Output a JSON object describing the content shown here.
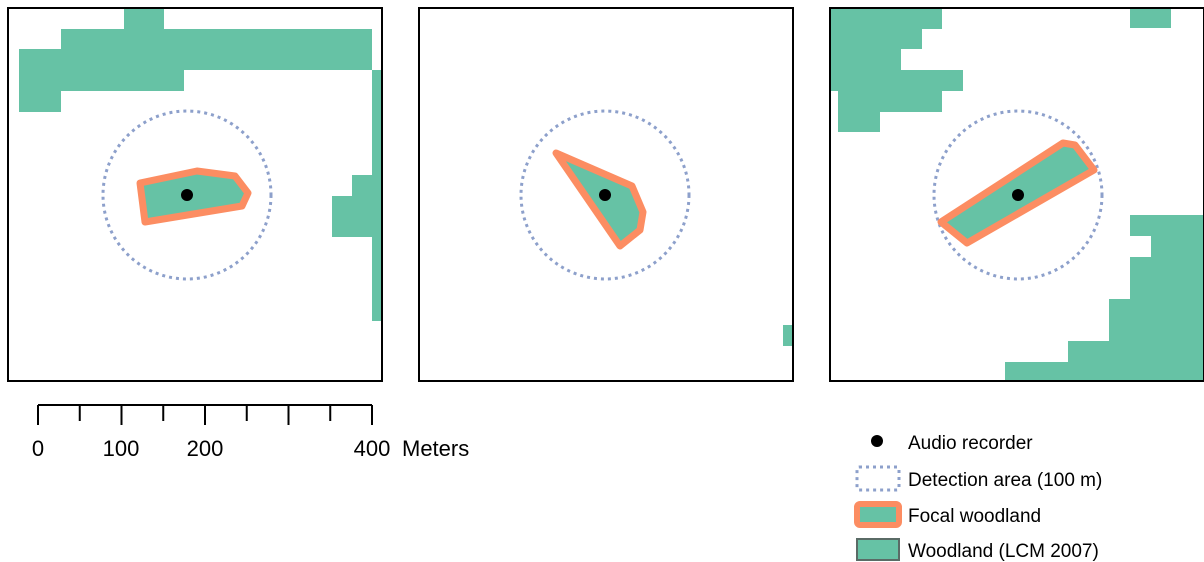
{
  "colors": {
    "woodland": "#66c2a5",
    "focal_outline": "#fc8d62",
    "detection": "#8da0cb",
    "recorder": "#000000",
    "frame": "#000000"
  },
  "scale_bar": {
    "ticks": [
      "0",
      "100",
      "200",
      "400"
    ],
    "unit": "Meters"
  },
  "legend": {
    "items": [
      {
        "symbol": "recorder-dot",
        "label": "Audio recorder"
      },
      {
        "symbol": "detection-circle",
        "label": "Detection area (100 m)"
      },
      {
        "symbol": "focal-woodland",
        "label": "Focal woodland"
      },
      {
        "symbol": "woodland-lcm",
        "label": "Woodland (LCM 2007)"
      }
    ]
  }
}
